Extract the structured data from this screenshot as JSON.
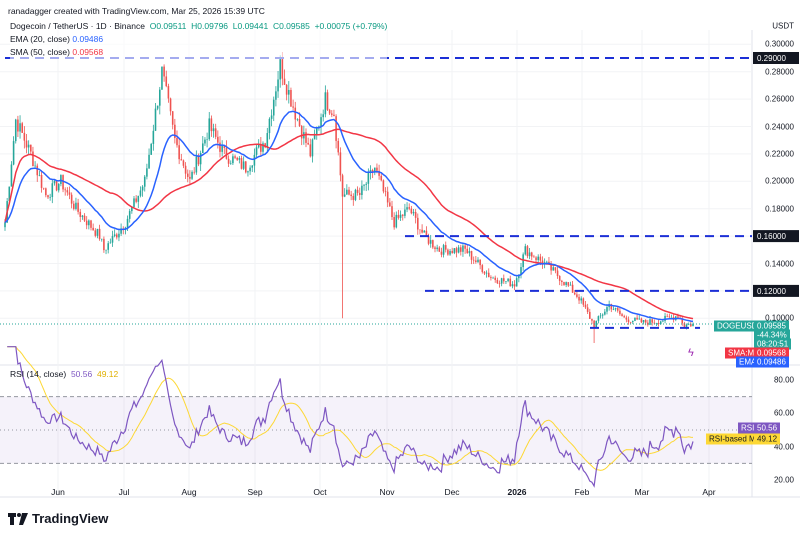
{
  "credit": "ranadagger created with TradingView.com, Mar 25, 2026 15:39 UTC",
  "symbol": "Dogecoin / TetherUS · 1D · Binance",
  "ohlc": {
    "o": "O0.09511",
    "h": "H0.09796",
    "l": "L0.09441",
    "c": "C0.09585",
    "chg": "+0.00075 (+0.79%)"
  },
  "ema_label": "EMA (20, close)",
  "ema_value": "0.09486",
  "sma_label": "SMA (50, close)",
  "sma_value": "0.09568",
  "rsi_label": "RSI (14, close)",
  "rsi_value": "50.56",
  "rsi_ma_value": "49.12",
  "currency": "USDT",
  "colors": {
    "up": "#26a69a",
    "down": "#ef5350",
    "ema": "#2962ff",
    "sma": "#f23645",
    "rsi": "#7e57c2",
    "rsi_ma": "#fdd835"
  },
  "tags": {
    "ticker": "DOGEUSDT",
    "price": "0.09585",
    "pct": "-44.34%",
    "countdown": "08:20:51",
    "sma_tag": "SMA:MA",
    "sma_val": "0.09568",
    "ema_tag": "EMA",
    "ema_val": "0.09486",
    "rsi_tag": "RSI",
    "rsi_val": "50.56",
    "rsima_tag": "RSI-based MA",
    "rsima_val": "49.12"
  },
  "logo": "TradingView",
  "chart_data": {
    "type": "candlestick",
    "title": "Dogecoin / TetherUS · 1D · Binance",
    "start_date": "2025-05-06",
    "close_keypoints_day_price": [
      [
        0,
        0.17
      ],
      [
        5,
        0.245
      ],
      [
        12,
        0.22
      ],
      [
        19,
        0.19
      ],
      [
        26,
        0.2
      ],
      [
        33,
        0.18
      ],
      [
        44,
        0.16
      ],
      [
        46,
        0.15
      ],
      [
        56,
        0.17
      ],
      [
        65,
        0.2
      ],
      [
        73,
        0.28
      ],
      [
        79,
        0.23
      ],
      [
        86,
        0.2
      ],
      [
        95,
        0.24
      ],
      [
        102,
        0.22
      ],
      [
        112,
        0.21
      ],
      [
        121,
        0.23
      ],
      [
        128,
        0.285
      ],
      [
        135,
        0.25
      ],
      [
        142,
        0.22
      ],
      [
        149,
        0.26
      ],
      [
        153,
        0.25
      ],
      [
        157,
        0.19
      ],
      [
        165,
        0.19
      ],
      [
        172,
        0.21
      ],
      [
        181,
        0.17
      ],
      [
        188,
        0.18
      ],
      [
        195,
        0.16
      ],
      [
        202,
        0.15
      ],
      [
        214,
        0.15
      ],
      [
        226,
        0.13
      ],
      [
        237,
        0.125
      ],
      [
        242,
        0.15
      ],
      [
        251,
        0.14
      ],
      [
        258,
        0.13
      ],
      [
        267,
        0.115
      ],
      [
        274,
        0.095
      ],
      [
        281,
        0.11
      ],
      [
        288,
        0.1
      ],
      [
        297,
        0.097
      ],
      [
        304,
        0.098
      ],
      [
        313,
        0.102
      ],
      [
        316,
        0.095
      ],
      [
        320,
        0.0958
      ]
    ],
    "horizontal_levels": [
      0.29,
      0.16,
      0.12,
      0.093
    ],
    "price_ticks": [
      0.3,
      0.28,
      0.26,
      0.24,
      0.22,
      0.2,
      0.18,
      0.16,
      0.14,
      0.12,
      0.1
    ],
    "price_ticks_labels": [
      "0.30000",
      "0.28000",
      "0.26000",
      "0.24000",
      "0.22000",
      "0.20000",
      "0.18000",
      "0.16000",
      "0.14000",
      "0.12000",
      "0.10000"
    ],
    "rsi_ticks": [
      "80.00",
      "60.00",
      "40.00",
      "20.00"
    ],
    "x_ticks": [
      "Jun",
      "Jul",
      "Aug",
      "Sep",
      "Oct",
      "Nov",
      "Dec",
      "2026",
      "Feb",
      "Mar",
      "Apr"
    ],
    "indicators": [
      "EMA 20",
      "SMA 50",
      "RSI 14",
      "RSI-based MA 14"
    ]
  }
}
